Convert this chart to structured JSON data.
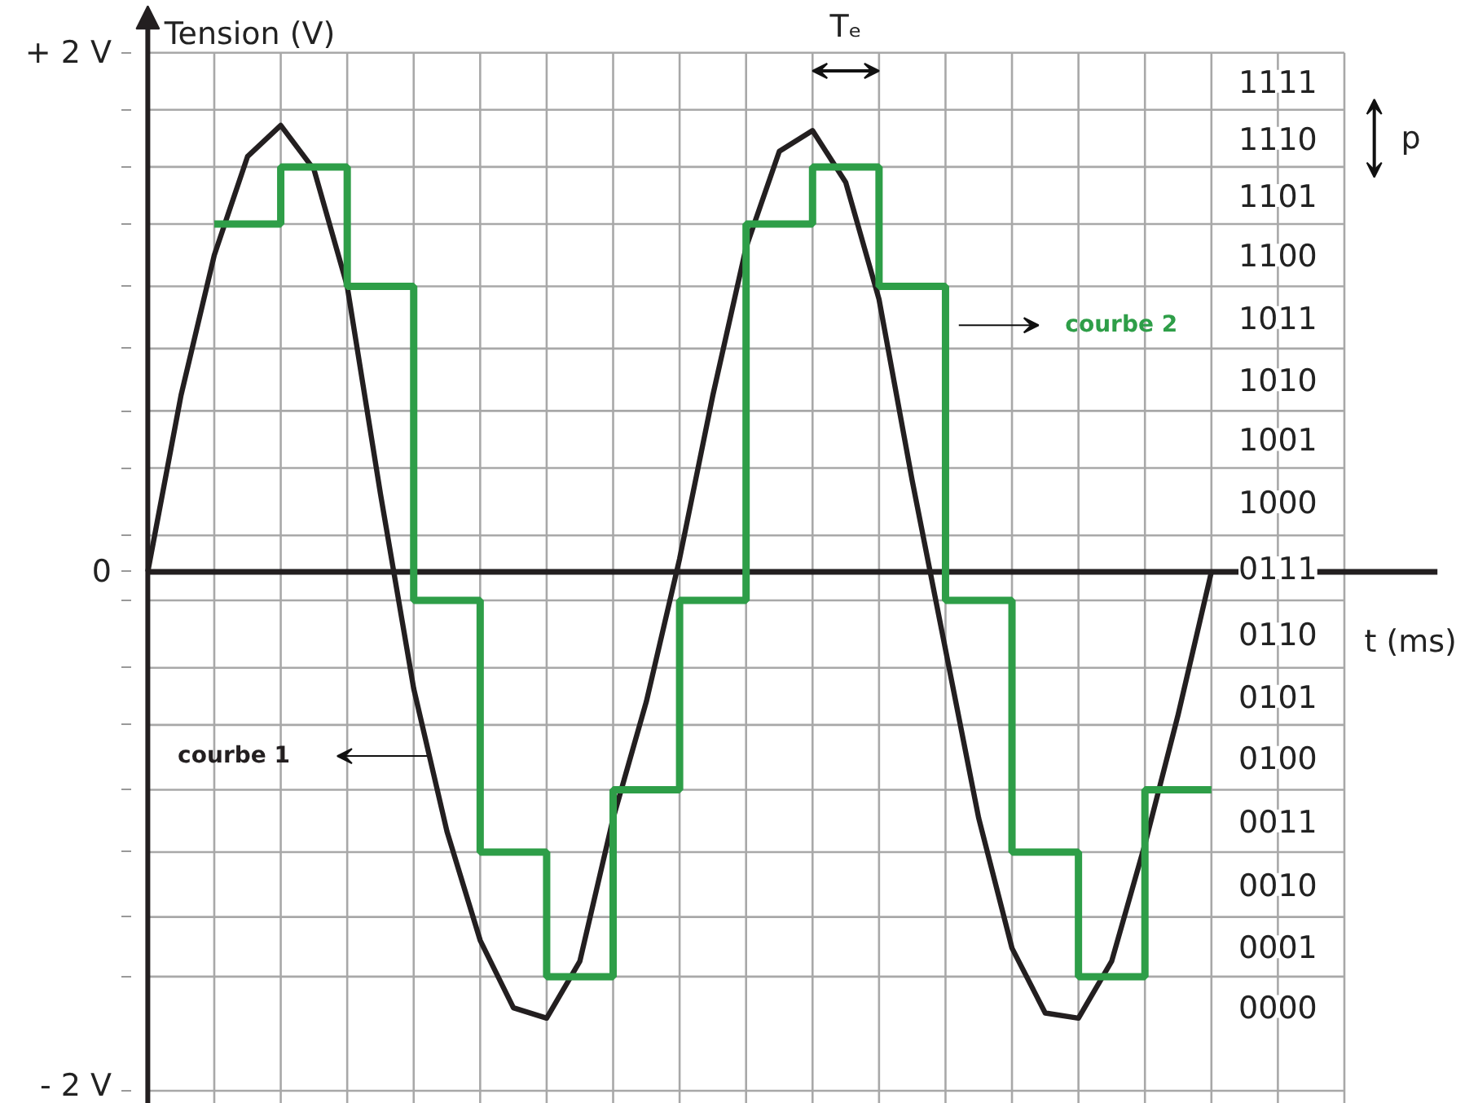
{
  "chart_data": {
    "type": "line",
    "xlabel": "t (ms)",
    "ylabel": "Tension (V)",
    "categories": [
      null,
      null,
      null,
      null,
      null,
      null,
      null,
      null,
      null,
      null,
      null,
      null,
      null,
      null,
      null,
      null,
      null,
      null,
      null,
      null,
      null,
      null,
      null,
      null,
      null,
      null,
      null,
      null,
      null,
      null,
      null,
      null,
      null
    ],
    "ylim": [
      -2.05,
      2.2
    ],
    "yticks": [
      {
        "value": 2,
        "label": "+ 2 V"
      },
      {
        "value": 1.78,
        "label": null
      },
      {
        "value": 1.56,
        "label": null
      },
      {
        "value": 1.34,
        "label": null
      },
      {
        "value": 1.1,
        "label": null
      },
      {
        "value": 0.86,
        "label": null
      },
      {
        "value": 0.62,
        "label": null
      },
      {
        "value": 0.4,
        "label": null
      },
      {
        "value": 0.14,
        "label": null
      },
      {
        "value": 0,
        "label": "0"
      },
      {
        "value": -0.11,
        "label": null
      },
      {
        "value": -0.37,
        "label": null
      },
      {
        "value": -0.59,
        "label": null
      },
      {
        "value": -0.84,
        "label": null
      },
      {
        "value": -1.08,
        "label": null
      },
      {
        "value": -1.33,
        "label": null
      },
      {
        "value": -1.56,
        "label": null
      },
      {
        "value": -2,
        "label": "- 2 V"
      }
    ],
    "grid": true,
    "annotations": [
      "Tₑ",
      "p",
      "1111",
      "1110",
      "1101",
      "1100",
      "1011",
      "1010",
      "1001",
      "1000",
      "0111",
      "0110",
      "0101",
      "0100",
      "0011",
      "0010",
      "0001",
      "0000"
    ],
    "series": [
      {
        "name": "courbe 1",
        "color": "#231f20",
        "values": [
          0,
          0.68,
          1.22,
          1.6,
          1.72,
          1.55,
          1.1,
          0.3,
          -0.45,
          -1.0,
          -1.42,
          -1.68,
          -1.72,
          -1.5,
          -0.95,
          -0.5,
          0.05,
          0.68,
          1.25,
          1.62,
          1.7,
          1.5,
          1.05,
          0.35,
          -0.3,
          -0.95,
          -1.45,
          -1.7,
          -1.72,
          -1.5,
          -1.05,
          -0.55,
          0
        ]
      },
      {
        "name": "courbe 2",
        "type": "step",
        "color": "#2e9e48",
        "values": [
          null,
          null,
          1.34,
          1.34,
          1.56,
          1.56,
          1.1,
          1.1,
          -0.11,
          -0.11,
          -1.08,
          -1.08,
          -1.56,
          -1.56,
          -0.84,
          -0.84,
          -0.11,
          -0.11,
          1.34,
          1.34,
          1.56,
          1.56,
          1.1,
          1.1,
          -0.11,
          -0.11,
          -1.08,
          -1.08,
          -1.56,
          -1.56,
          -0.84,
          -0.84,
          -0.84
        ]
      }
    ]
  }
}
